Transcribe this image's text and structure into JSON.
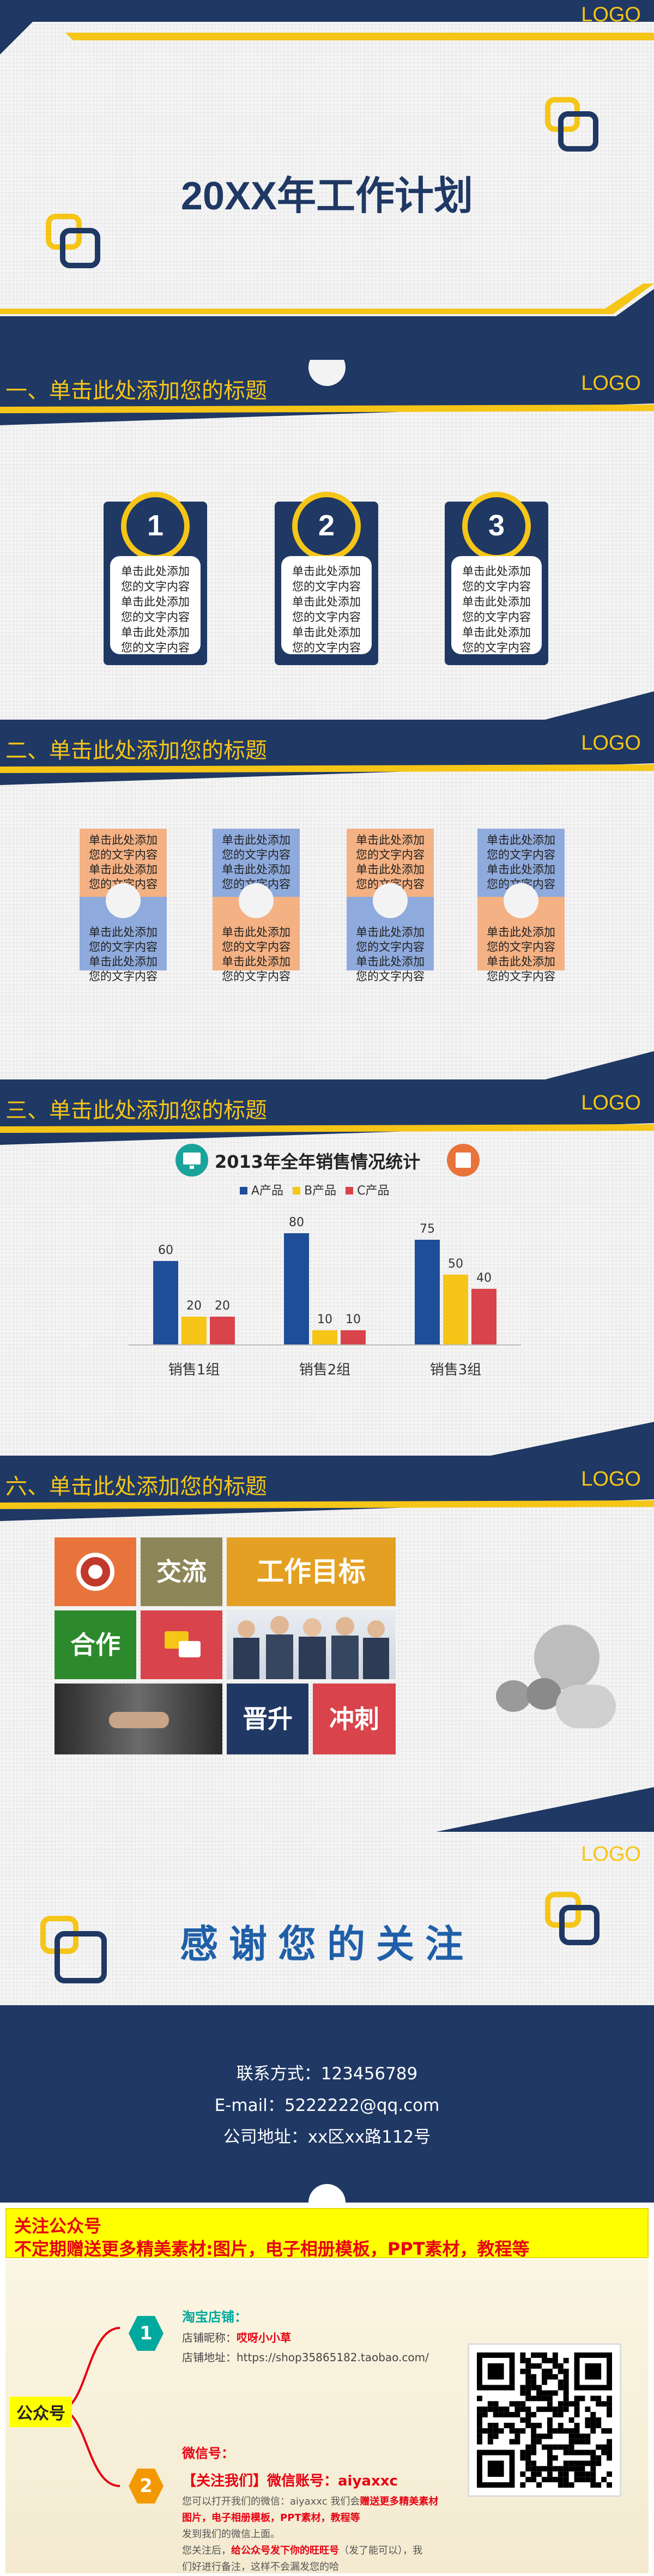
{
  "logo": "LOGO",
  "cover": {
    "title": "20XX年工作计划"
  },
  "section1": {
    "title": "一、单击此处添加您的标题",
    "cards": [
      {
        "num": "1",
        "lines": [
          "单击此处添加",
          "您的文字内容",
          "单击此处添加",
          "您的文字内容",
          "单击此处添加",
          "您的文字内容"
        ]
      },
      {
        "num": "2",
        "lines": [
          "单击此处添加",
          "您的文字内容",
          "单击此处添加",
          "您的文字内容",
          "单击此处添加",
          "您的文字内容"
        ]
      },
      {
        "num": "3",
        "lines": [
          "单击此处添加",
          "您的文字内容",
          "单击此处添加",
          "您的文字内容",
          "单击此处添加",
          "您的文字内容"
        ]
      }
    ]
  },
  "section2": {
    "title": "二、单击此处添加您的标题",
    "tile_text": [
      "单击此处添加",
      "您的文字内容",
      "单击此处添加",
      "您的文字内容"
    ]
  },
  "section3": {
    "title": "三、单击此处添加您的标题"
  },
  "chart_data": {
    "type": "bar",
    "title": "2013年全年销售情况统计",
    "categories": [
      "销售1组",
      "销售2组",
      "销售3组"
    ],
    "series": [
      {
        "name": "A产品",
        "values": [
          60,
          80,
          75
        ],
        "color": "#1f4e99"
      },
      {
        "name": "B产品",
        "values": [
          20,
          10,
          50
        ],
        "color": "#f5c518"
      },
      {
        "name": "C产品",
        "values": [
          20,
          10,
          40
        ],
        "color": "#d9434b"
      }
    ],
    "ylim": [
      0,
      90
    ],
    "legend": "top",
    "grid": false
  },
  "section6": {
    "title": "六、单击此处添加您的标题",
    "tiles": {
      "jiaoliu": "交流",
      "goal": "工作目标",
      "hezuo": "合作",
      "jinsheng": "晋升",
      "chongci": "冲刺"
    }
  },
  "thanks": {
    "title": "感谢您的关注",
    "contact": "联系方式：123456789",
    "email": "E-mail：5222222@qq.com",
    "address": "公司地址：xx区xx路112号"
  },
  "promo": {
    "header": "关注公众号",
    "subheader": "不定期赠送更多精美素材:图片，电子相册模板，PPT素材，教程等",
    "side_label": "公众号",
    "item1": {
      "num": "1",
      "title": "淘宝店铺：",
      "line1": "店铺昵称：",
      "line1_value": "哎呀小小草",
      "line2": "店铺地址：https://shop35865182.taobao.com/"
    },
    "item2": {
      "num": "2",
      "title": "微信号：",
      "wechat_line": "【关注我们】微信账号：aiyaxxc",
      "line1": "您可以打开我们的微信：aiyaxxc 我们会",
      "line1_hl": "赠送更多精美素材",
      "line2": "图片，电子相册模板，PPT素材，教程等",
      "line3": "发到我们的微信上面。",
      "line4": "您关注后，",
      "line4_hl": "给公众号发下你的旺旺号",
      "line4_rest": "（发了能可以），我",
      "line5": "们好进行备注，这样不会漏发您的哈"
    },
    "colors": {
      "yellow": "#ffff00",
      "red": "#e60012",
      "teal": "#00a99d",
      "orange": "#f39800"
    }
  },
  "colors": {
    "navy": "#1f3864",
    "yellow": "#f5c518",
    "orange_tile": "#f4b183",
    "blue_tile": "#8faadc"
  }
}
